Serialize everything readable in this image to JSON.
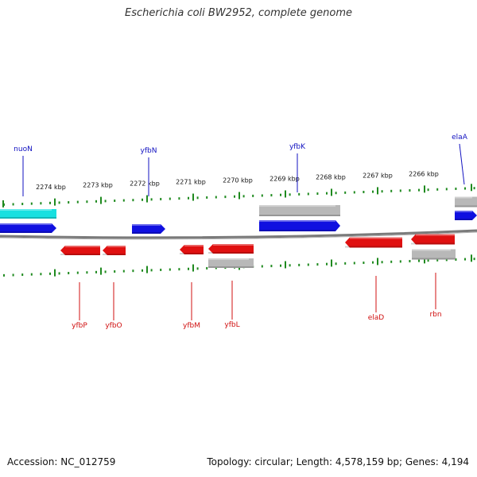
{
  "title": "Escherichia coli BW2952, complete genome",
  "footer": {
    "accession": "Accession: NC_012759",
    "topology": "Topology: circular; Length: 4,578,159 bp; Genes: 4,194"
  },
  "colors": {
    "backbone": "#7a7a7a",
    "tick": "#1f8a1f",
    "forward_gene": "#1010e0",
    "reverse_gene": "#e01010",
    "cyan_feature": "#18e0e0",
    "gray_feature": "#b8b8b8",
    "forward_label": "#1010c0",
    "reverse_label": "#d01010"
  },
  "scale_labels": [
    "2274 kbp",
    "2273 kbp",
    "2272 kbp",
    "2271 kbp",
    "2270 kbp",
    "2269 kbp",
    "2268 kbp",
    "2267 kbp",
    "2266 kbp"
  ],
  "top_labels": [
    "nuoN",
    "yfbN",
    "yfbK",
    "elaA"
  ],
  "bottom_labels": [
    "yfbP",
    "yfbO",
    "yfbM",
    "yfbL",
    "elaD",
    "rbn"
  ]
}
